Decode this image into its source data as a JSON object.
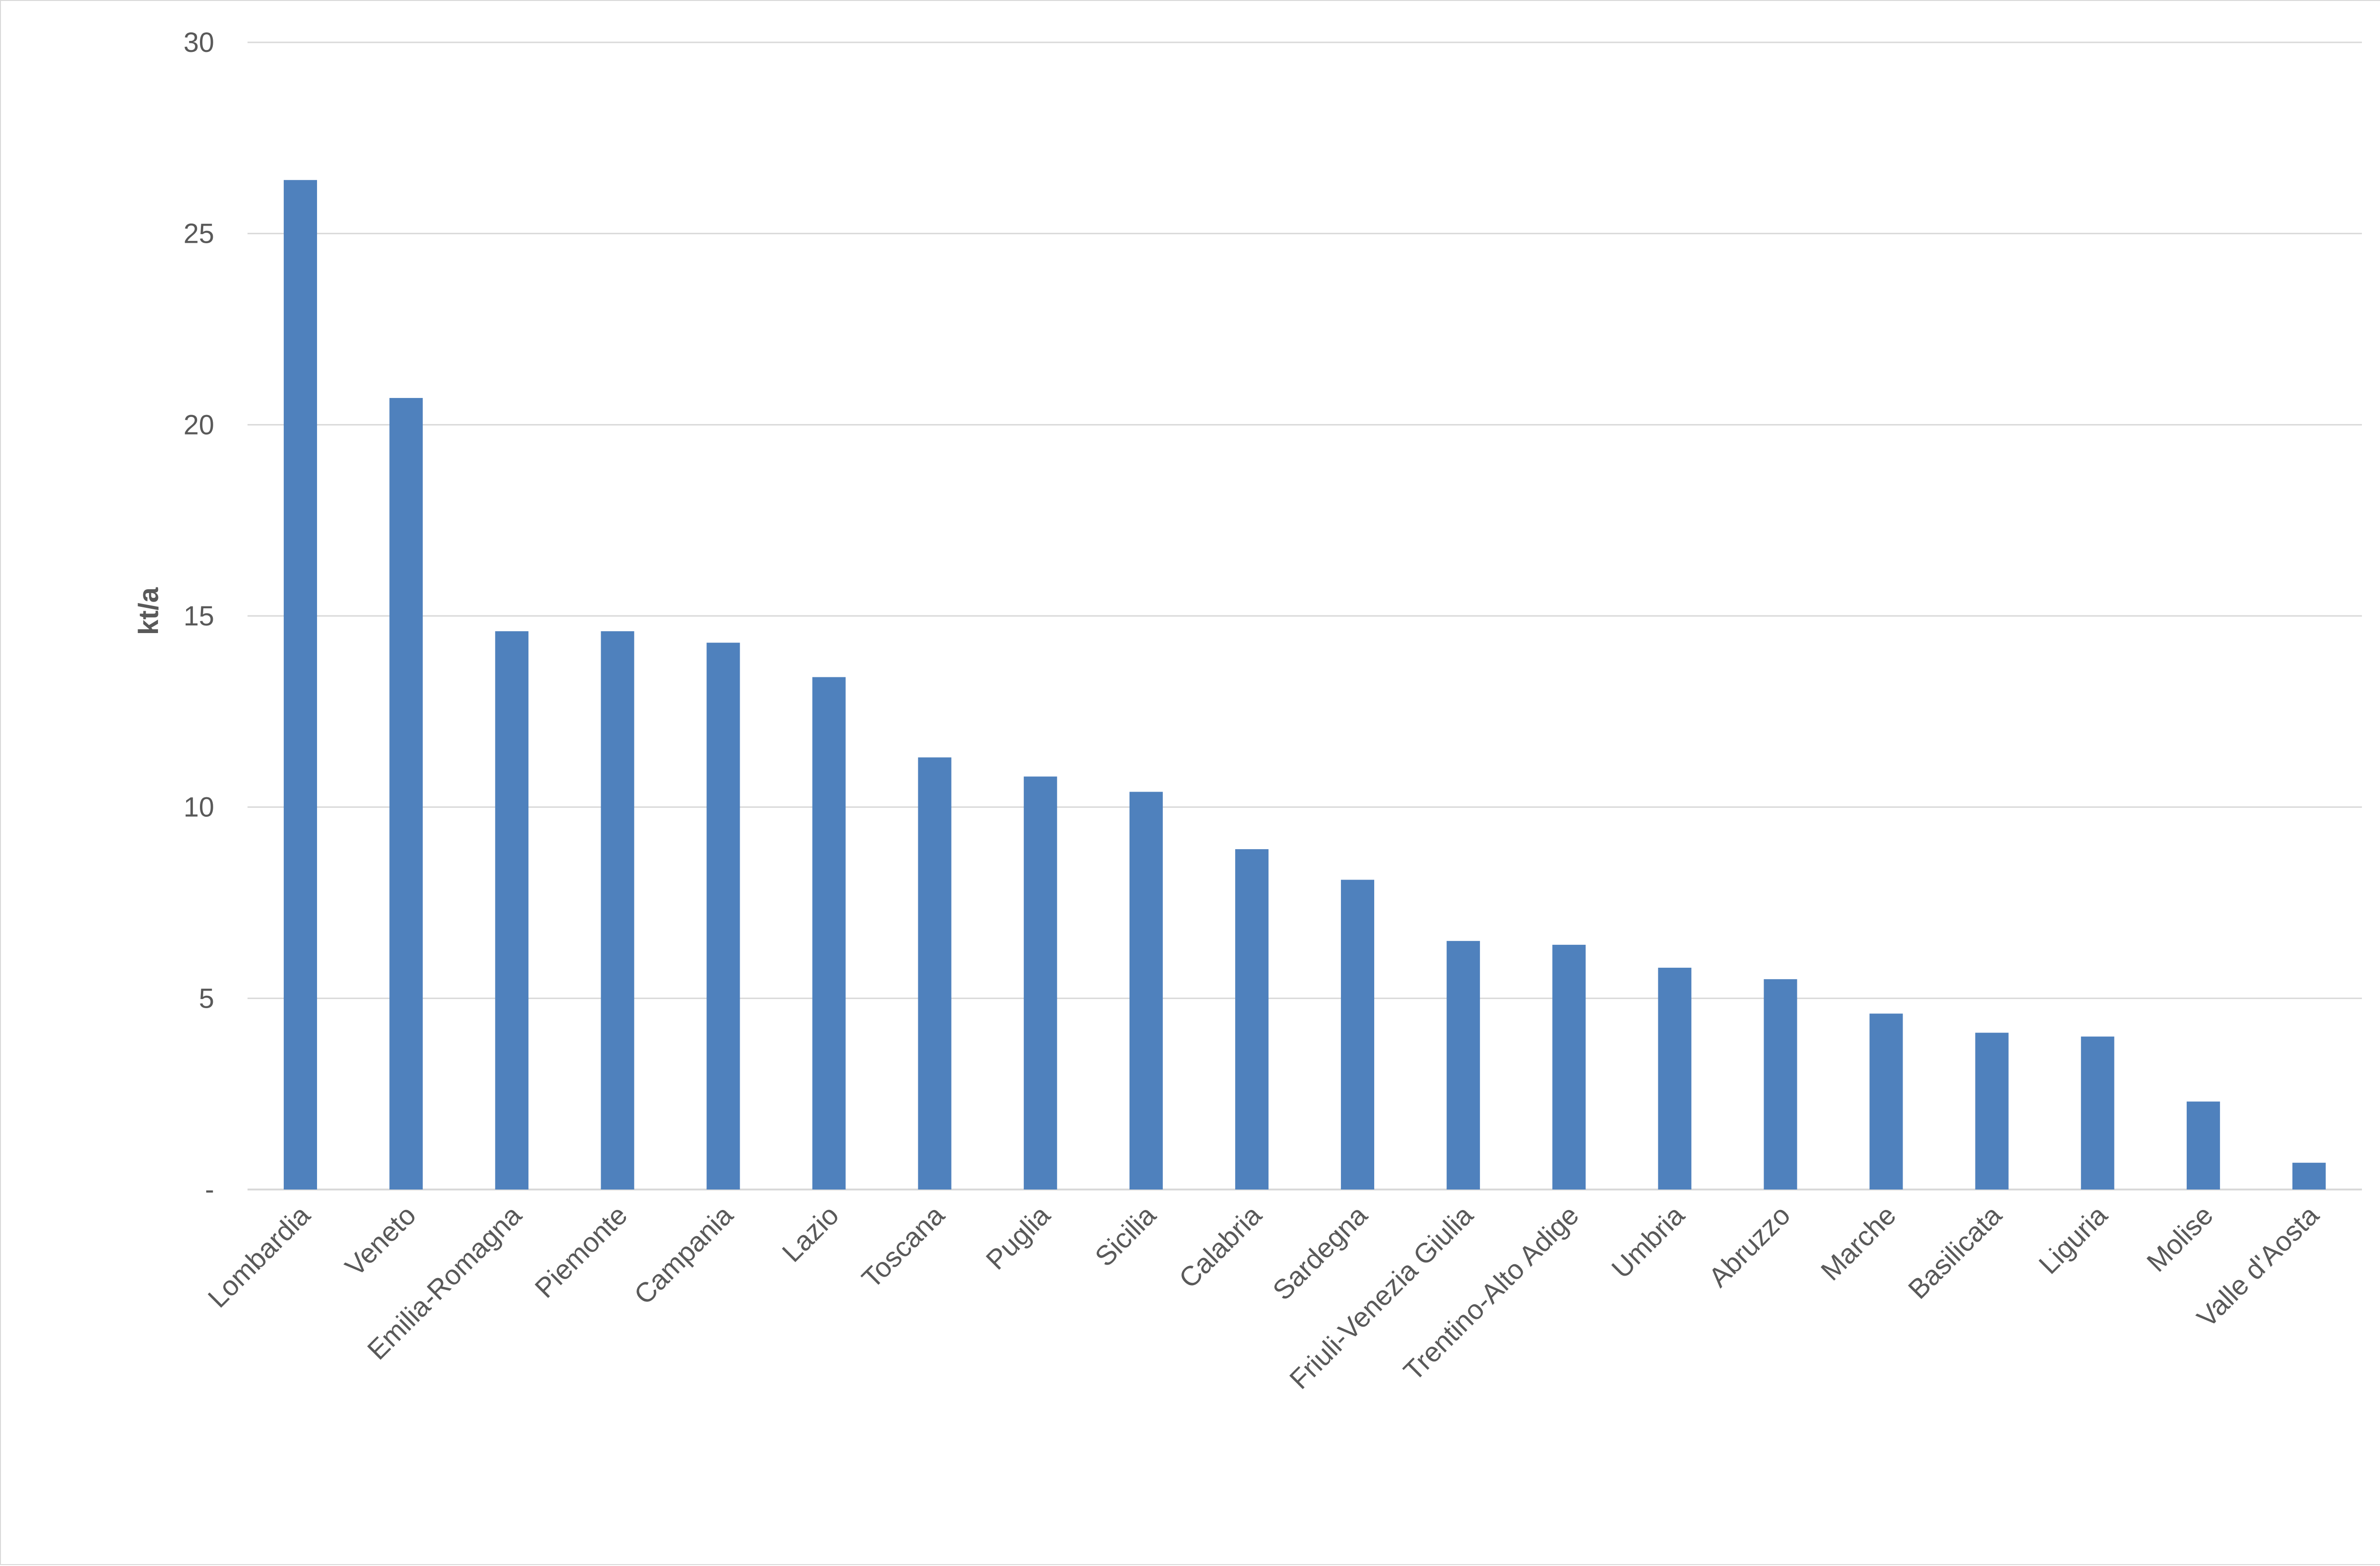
{
  "chart_data": {
    "type": "bar",
    "title": "",
    "xlabel": "",
    "ylabel": "kt/a",
    "ylim": [
      0,
      30
    ],
    "yticks": [
      0,
      5,
      10,
      15,
      20,
      25,
      30
    ],
    "ytick_labels": [
      "-",
      "5",
      "10",
      "15",
      "20",
      "25",
      "30"
    ],
    "grid": true,
    "legend": "none",
    "bar_color": "#4f81bd",
    "grid_color": "#d9d9d9",
    "categories": [
      "Lombardia",
      "Veneto",
      "Emilia-Romagna",
      "Piemonte",
      "Campania",
      "Lazio",
      "Toscana",
      "Puglia",
      "Sicilia",
      "Calabria",
      "Sardegna",
      "Friuli-Venezia Giulia",
      "Trentino-Alto Adige",
      "Umbria",
      "Abruzzo",
      "Marche",
      "Basilicata",
      "Liguria",
      "Molise",
      "Valle d'Aosta"
    ],
    "values": [
      26.4,
      20.7,
      14.6,
      14.6,
      14.3,
      13.4,
      11.3,
      10.8,
      10.4,
      8.9,
      8.1,
      6.5,
      6.4,
      5.8,
      5.5,
      4.6,
      4.1,
      4.0,
      2.3,
      0.7
    ]
  }
}
